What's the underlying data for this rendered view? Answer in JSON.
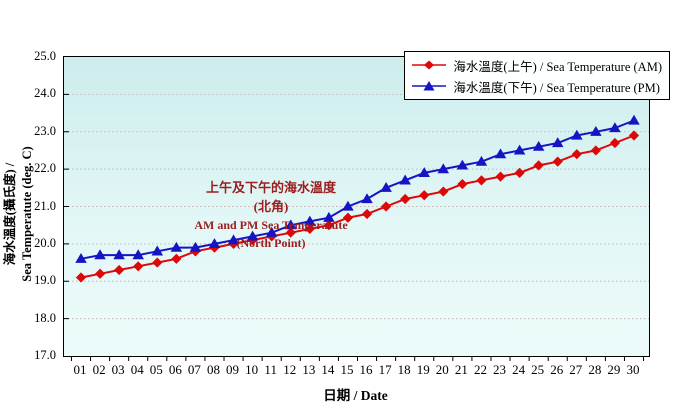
{
  "chart_data": {
    "type": "line",
    "x": [
      "01",
      "02",
      "03",
      "04",
      "05",
      "06",
      "07",
      "08",
      "09",
      "10",
      "11",
      "12",
      "13",
      "14",
      "15",
      "16",
      "17",
      "18",
      "19",
      "20",
      "21",
      "22",
      "23",
      "24",
      "25",
      "26",
      "27",
      "28",
      "29",
      "30"
    ],
    "series": [
      {
        "name": "海水溫度(上午) / Sea Temperature (AM)",
        "marker": "diamond",
        "color": "#dd0808",
        "values": [
          19.1,
          19.2,
          19.3,
          19.4,
          19.5,
          19.6,
          19.8,
          19.9,
          20.0,
          20.1,
          20.2,
          20.3,
          20.4,
          20.5,
          20.7,
          20.8,
          21.0,
          21.2,
          21.3,
          21.4,
          21.6,
          21.7,
          21.8,
          21.9,
          22.1,
          22.2,
          22.4,
          22.5,
          22.7,
          22.9
        ]
      },
      {
        "name": "海水溫度(下午) / Sea Temperature (PM)",
        "marker": "triangle",
        "color": "#1515c4",
        "values": [
          19.6,
          19.7,
          19.7,
          19.7,
          19.8,
          19.9,
          19.9,
          20.0,
          20.1,
          20.2,
          20.3,
          20.5,
          20.6,
          20.7,
          21.0,
          21.2,
          21.5,
          21.7,
          21.9,
          22.0,
          22.1,
          22.2,
          22.4,
          22.5,
          22.6,
          22.7,
          22.9,
          23.0,
          23.1,
          23.3
        ]
      }
    ],
    "ylim": [
      17.0,
      25.0
    ],
    "ytick_step": 1.0,
    "yticks": [
      "25.0",
      "24.0",
      "23.0",
      "22.0",
      "21.0",
      "20.0",
      "19.0",
      "18.0",
      "17.0"
    ],
    "ylabel_line1": "海水溫度(攝氏度) /",
    "ylabel_line2": "Sea Temperatute (deg. C)",
    "xlabel": "日期 / Date",
    "grid": "horizontal-dotted",
    "gridline_color": "#c9b6b6",
    "plot_bg_color": "#d9f3f2",
    "legend_position": "top-right",
    "annotation": {
      "line1": "上午及下午的海水溫度",
      "line2": "(北角)",
      "line3": "AM and PM Sea Temperatute",
      "line4": "(North Point)",
      "color": "#9b1d1d"
    }
  }
}
